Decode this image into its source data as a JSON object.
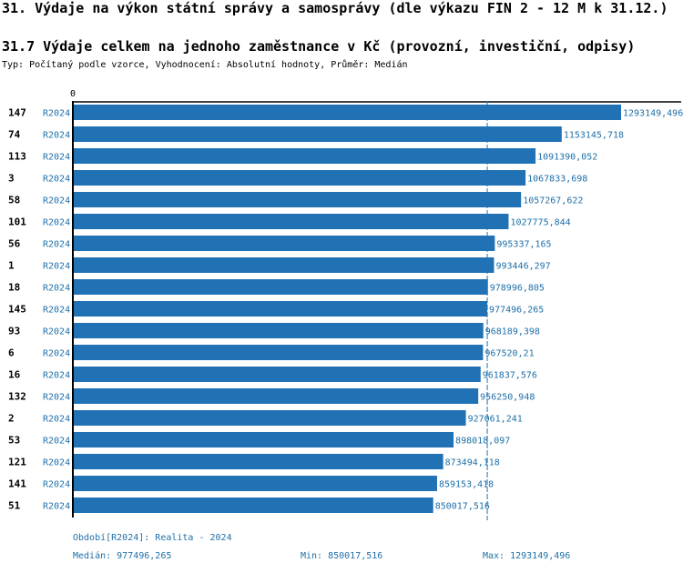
{
  "page_title": "31. Výdaje na výkon státní správy a samosprávy (dle výkazu FIN 2 - 12 M k 31.12.)",
  "chart_title": "31.7 Výdaje celkem na jednoho zaměstnance v Kč (provozní, investiční, odpisy)",
  "subtitle": "Typ: Počítaný podle vzorce, Vyhodnocení: Absolutní hodnoty, Průměr: Medián",
  "colors": {
    "bar": "#2171b5",
    "label": "#1f6fa8",
    "median_line": "#2171b5"
  },
  "chart_data": {
    "type": "bar",
    "orientation": "horizontal",
    "axis_zero_label": "0",
    "xlim": [
      0,
      1293149.496
    ],
    "median": 977496.265,
    "rows": [
      {
        "id": "147",
        "period": "R2024",
        "value": 1293149.496,
        "label": "1293149,496"
      },
      {
        "id": "74",
        "period": "R2024",
        "value": 1153145.718,
        "label": "1153145,718"
      },
      {
        "id": "113",
        "period": "R2024",
        "value": 1091390.052,
        "label": "1091390,052"
      },
      {
        "id": "3",
        "period": "R2024",
        "value": 1067833.698,
        "label": "1067833,698"
      },
      {
        "id": "58",
        "period": "R2024",
        "value": 1057267.622,
        "label": "1057267,622"
      },
      {
        "id": "101",
        "period": "R2024",
        "value": 1027775.844,
        "label": "1027775,844"
      },
      {
        "id": "56",
        "period": "R2024",
        "value": 995337.165,
        "label": "995337,165"
      },
      {
        "id": "1",
        "period": "R2024",
        "value": 993446.297,
        "label": "993446,297"
      },
      {
        "id": "18",
        "period": "R2024",
        "value": 978996.805,
        "label": "978996,805"
      },
      {
        "id": "145",
        "period": "R2024",
        "value": 977496.265,
        "label": "977496,265"
      },
      {
        "id": "93",
        "period": "R2024",
        "value": 968189.398,
        "label": "968189,398"
      },
      {
        "id": "6",
        "period": "R2024",
        "value": 967520.21,
        "label": "967520,21"
      },
      {
        "id": "16",
        "period": "R2024",
        "value": 961837.576,
        "label": "961837,576"
      },
      {
        "id": "132",
        "period": "R2024",
        "value": 956250.948,
        "label": "956250,948"
      },
      {
        "id": "2",
        "period": "R2024",
        "value": 927061.241,
        "label": "927061,241"
      },
      {
        "id": "53",
        "period": "R2024",
        "value": 898018.097,
        "label": "898018,097"
      },
      {
        "id": "121",
        "period": "R2024",
        "value": 873494.118,
        "label": "873494,118"
      },
      {
        "id": "141",
        "period": "R2024",
        "value": 859153.418,
        "label": "859153,418"
      },
      {
        "id": "51",
        "period": "R2024",
        "value": 850017.516,
        "label": "850017,516"
      }
    ]
  },
  "footer": {
    "period_legend": "Období[R2024]: Realita - 2024",
    "median_text": "Medián: 977496,265",
    "min_text": "Min: 850017,516",
    "max_text": "Max: 1293149,496"
  }
}
